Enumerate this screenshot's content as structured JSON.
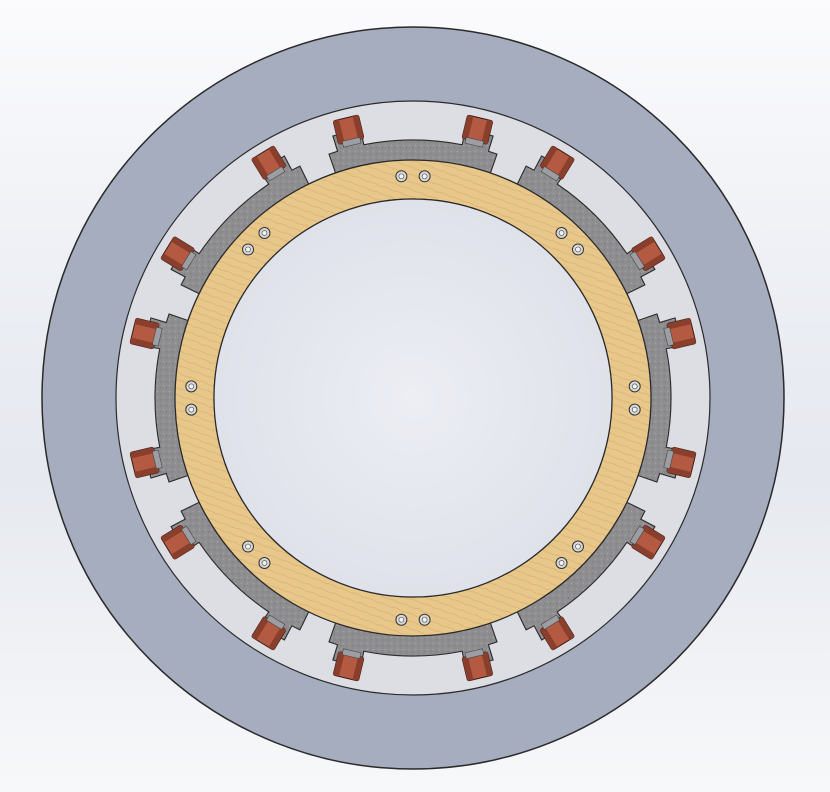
{
  "scene": {
    "type": "cad-render",
    "description_visible_text": []
  },
  "assembly": {
    "layers": [
      {
        "name": "outer-housing",
        "color": "#a6adbe"
      },
      {
        "name": "inner-translucent-ring",
        "color": "#dcdee3"
      },
      {
        "name": "stator-segments",
        "color": "#8d8d90",
        "count": 8
      },
      {
        "name": "wood-ring",
        "color": "#e7c587"
      },
      {
        "name": "center-opening",
        "color": "#e3e6ee"
      }
    ],
    "coils": {
      "count": 16,
      "color": "#b55a42"
    },
    "fasteners": {
      "count": 16,
      "color": "#d9d9d9"
    }
  }
}
